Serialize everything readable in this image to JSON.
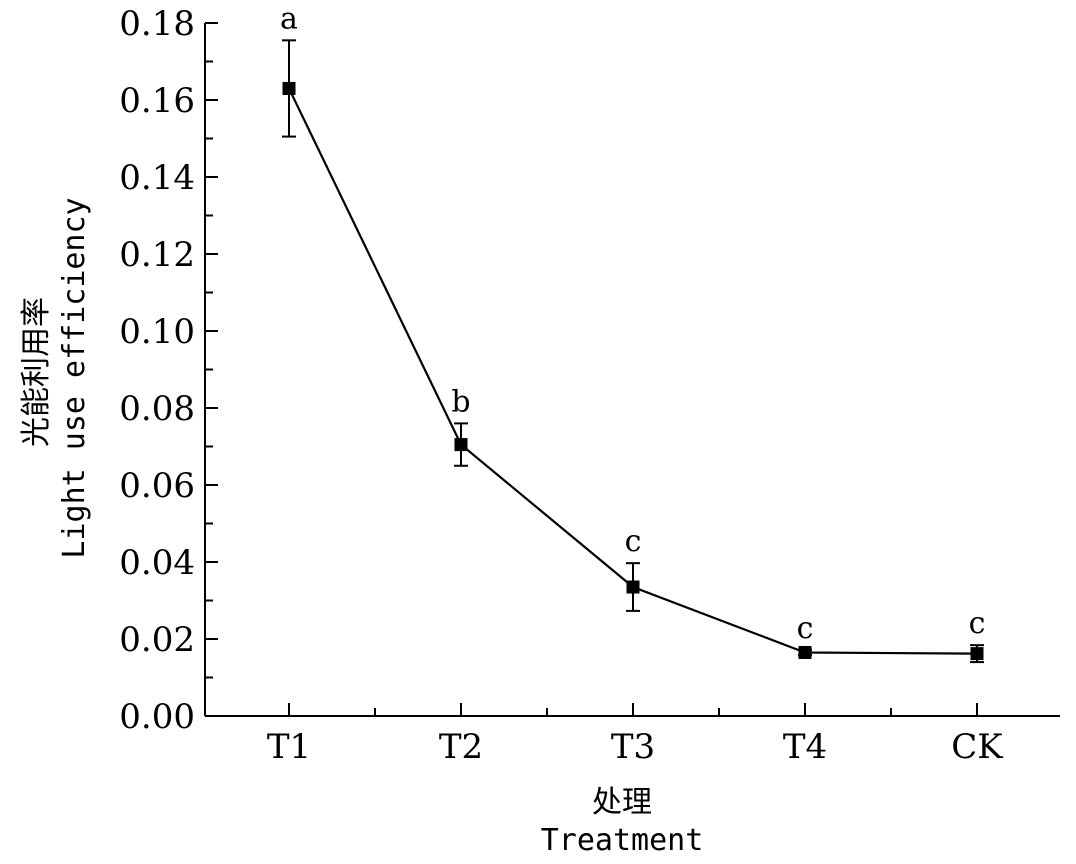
{
  "chart_data": {
    "type": "line",
    "title": "",
    "xlabel_cn": "处理",
    "xlabel_en": "Treatment",
    "ylabel_cn": "光能利用率",
    "ylabel_en": "Light use efficiency",
    "categories": [
      "T1",
      "T2",
      "T3",
      "T4",
      "CK"
    ],
    "series": [
      {
        "values": [
          0.163,
          0.0705,
          0.0335,
          0.0165,
          0.0162
        ],
        "errors": [
          0.0125,
          0.0055,
          0.0062,
          0.0007,
          0.0022
        ],
        "labels": [
          "a",
          "b",
          "c",
          "c",
          "c"
        ]
      }
    ],
    "ylim": [
      0,
      0.18
    ],
    "yticks": [
      "0.00",
      "0.02",
      "0.04",
      "0.06",
      "0.08",
      "0.10",
      "0.12",
      "0.14",
      "0.16",
      "0.18"
    ],
    "grid": false,
    "legend": "none",
    "marker": "square",
    "line_color": "#000000"
  }
}
